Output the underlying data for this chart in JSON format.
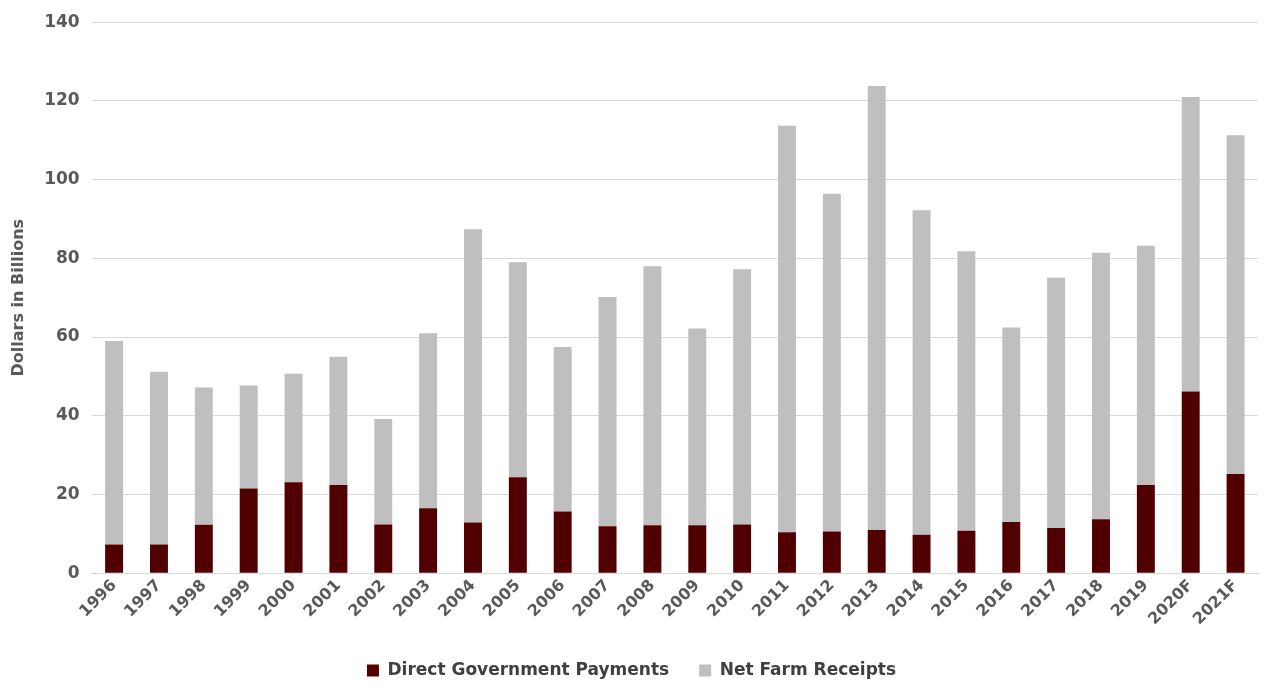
{
  "chart_data": {
    "type": "bar",
    "stacked": true,
    "ylabel": "Dollars in Billions",
    "categories": [
      "1996",
      "1997",
      "1998",
      "1999",
      "2000",
      "2001",
      "2002",
      "2003",
      "2004",
      "2005",
      "2006",
      "2007",
      "2008",
      "2009",
      "2010",
      "2011",
      "2012",
      "2013",
      "2014",
      "2015",
      "2016",
      "2017",
      "2018",
      "2019",
      "2020F",
      "2021F"
    ],
    "series": [
      {
        "name": "Direct Government Payments",
        "color": "#500000",
        "values": [
          7.3,
          7.3,
          12.3,
          21.5,
          23.1,
          22.4,
          12.4,
          16.5,
          12.9,
          24.4,
          15.7,
          11.9,
          12.2,
          12.2,
          12.4,
          10.4,
          10.6,
          11,
          9.8,
          10.8,
          13,
          11.5,
          13.7,
          22.4,
          46.2,
          25.2
        ]
      },
      {
        "name": "Net Farm Receipts",
        "color": "#bfbfbf",
        "values": [
          51.7,
          43.9,
          34.9,
          26.2,
          27.6,
          32.6,
          26.8,
          44.5,
          74.5,
          54.6,
          41.8,
          58.3,
          65.8,
          50,
          64.8,
          103.3,
          85.8,
          112.8,
          82.4,
          71,
          49.4,
          63.6,
          67.7,
          60.8,
          74.8,
          86.1
        ]
      }
    ],
    "ylim": [
      0,
      140
    ],
    "yticks": [
      0,
      20,
      40,
      60,
      80,
      100,
      120,
      140
    ],
    "grid": "y",
    "legend": "bottom"
  }
}
